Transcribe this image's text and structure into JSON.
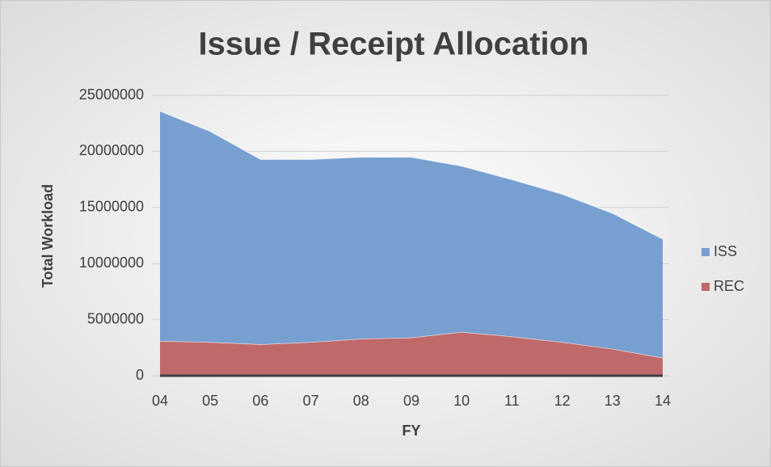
{
  "chart_data": {
    "type": "area",
    "stacked": true,
    "title": "Issue / Receipt Allocation",
    "x_label": "FY",
    "y_label": "Total Workload",
    "categories": [
      "04",
      "05",
      "06",
      "07",
      "08",
      "09",
      "10",
      "11",
      "12",
      "13",
      "14"
    ],
    "series": [
      {
        "name": "ISS",
        "color": "#779fd0",
        "values": [
          20500000,
          18800000,
          16500000,
          16300000,
          16200000,
          16100000,
          14800000,
          14000000,
          13200000,
          12100000,
          10600000
        ]
      },
      {
        "name": "REC",
        "color": "#c0696a",
        "values": [
          3100000,
          3000000,
          2800000,
          3000000,
          3300000,
          3400000,
          3900000,
          3500000,
          3000000,
          2400000,
          1600000
        ]
      }
    ],
    "ylim": [
      0,
      25000000
    ],
    "yticks": [
      0,
      5000000,
      10000000,
      15000000,
      20000000,
      25000000
    ],
    "grid": true,
    "legend": "right"
  }
}
